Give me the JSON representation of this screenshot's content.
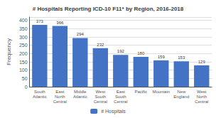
{
  "chart_data": {
    "type": "bar",
    "title": "# Hospitals Reporting ICD-10 F11* by Region, 2016-2018",
    "categories": [
      "South\nAtlantic",
      "East\nNorth\nCentral",
      "Middle\nAtlantic",
      "West\nSouth\nCentral",
      "East\nSouth\nCentral",
      "Pacific",
      "Mountain",
      "New\nEngland",
      "West\nNorth\nCentral"
    ],
    "series": [
      {
        "name": "# Hospitals",
        "color": "#4472c4",
        "values": [
          373,
          366,
          294,
          232,
          192,
          180,
          159,
          153,
          129
        ]
      }
    ],
    "ylabel": "Frequency",
    "ylim": [
      0,
      420
    ],
    "yticks": [
      0,
      50,
      100,
      150,
      200,
      250,
      300,
      350,
      400
    ],
    "grid": true,
    "legend": "bottom",
    "data_labels": true
  }
}
